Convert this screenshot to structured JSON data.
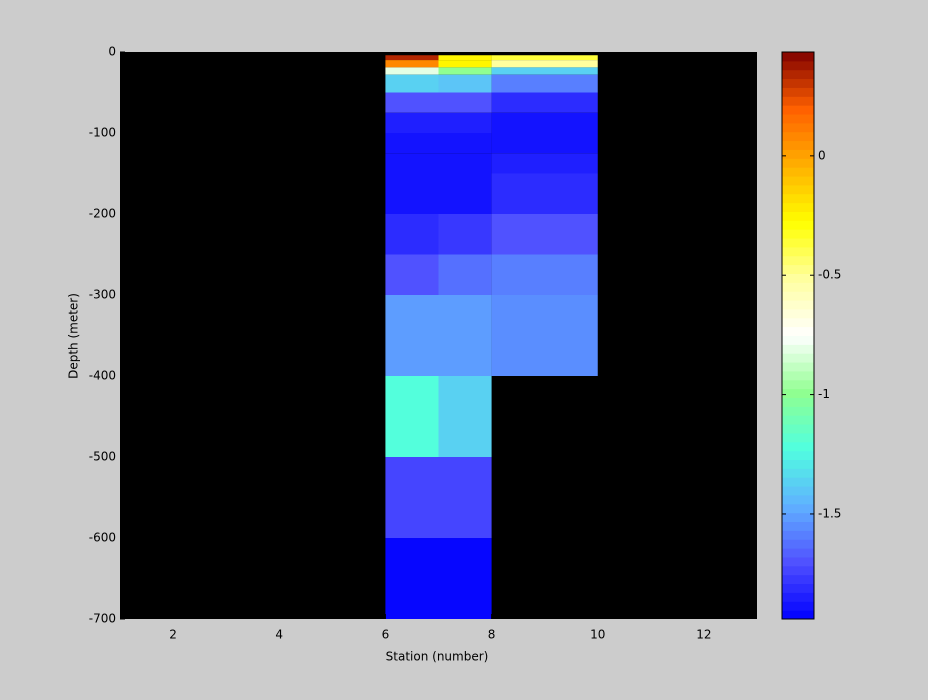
{
  "chart_data": {
    "type": "heatmap",
    "xlabel": "Station (number)",
    "ylabel": "Depth (meter)",
    "xlim": [
      1,
      13
    ],
    "xticks": [
      2,
      4,
      6,
      8,
      10,
      12
    ],
    "ylim": [
      -700,
      0
    ],
    "yticks": [
      0,
      -100,
      -200,
      -300,
      -400,
      -500,
      -600,
      -700
    ],
    "background": "#000000",
    "x_edges": [
      6,
      7,
      8,
      10
    ],
    "y_edges": [
      -4,
      -10,
      -19,
      -28,
      -50,
      -75,
      -100,
      -125,
      -150,
      -200,
      -250,
      -300,
      -400,
      -500,
      -600,
      -700
    ],
    "values": [
      [
        0.35,
        -0.25,
        -0.35
      ],
      [
        0.1,
        -0.25,
        -0.5
      ],
      [
        -0.8,
        -1.0,
        -1.35
      ],
      [
        -1.35,
        -1.4,
        -1.6
      ],
      [
        -1.7,
        -1.7,
        -1.8
      ],
      [
        -1.85,
        -1.85,
        -1.88
      ],
      [
        -1.88,
        -1.88,
        -1.88
      ],
      [
        -1.9,
        -1.88,
        -1.85
      ],
      [
        -1.9,
        -1.88,
        -1.8
      ],
      [
        -1.82,
        -1.78,
        -1.7
      ],
      [
        -1.7,
        -1.62,
        -1.6
      ],
      [
        -1.52,
        -1.52,
        -1.55
      ],
      [
        -1.2,
        -1.35,
        null
      ],
      [
        -1.75,
        -1.75,
        null
      ],
      [
        -1.95,
        -1.95,
        null
      ]
    ],
    "clim": [
      -1.94,
      0.435
    ],
    "cticks": [
      0,
      -0.5,
      -1,
      -1.5
    ],
    "colormap": [
      "#0000ff",
      "#5050ff",
      "#60b0ff",
      "#50ffe0",
      "#90ff90",
      "#ffffff",
      "#ffffa0",
      "#ffff00",
      "#ffb000",
      "#ff6000",
      "#800000"
    ],
    "levels": 64
  }
}
